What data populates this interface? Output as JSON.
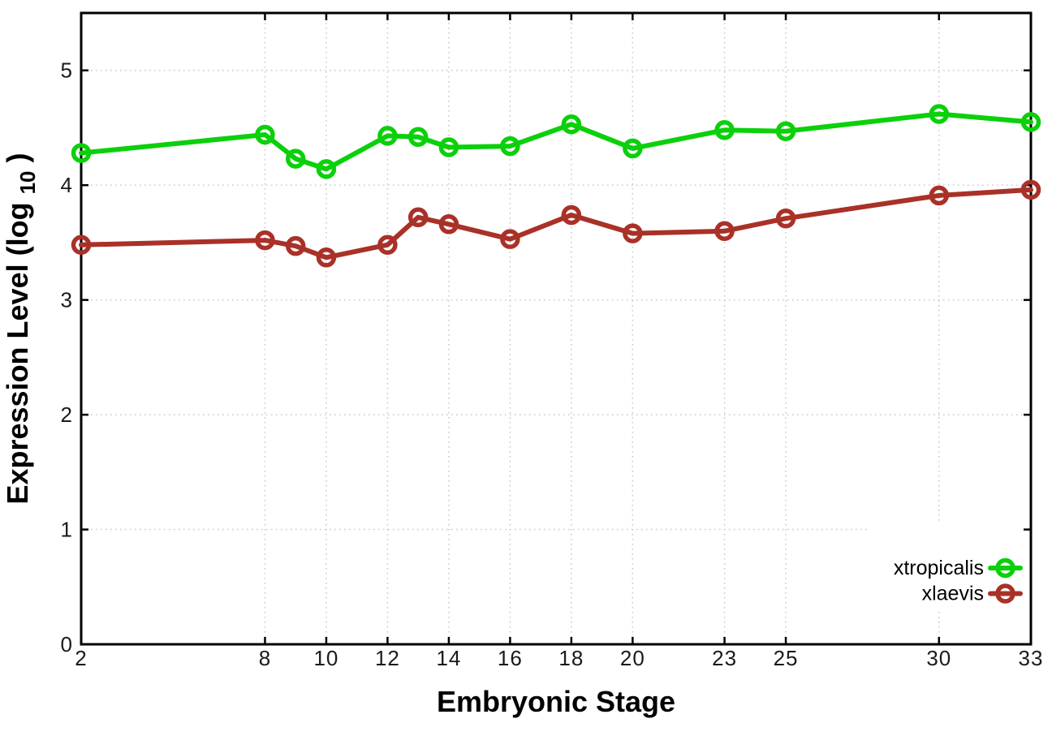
{
  "style": {
    "background": "#ffffff",
    "grid_color": "#c6c6c6",
    "axis_color": "#000000",
    "tick_text_color": "#1a1a1a"
  },
  "chart_data": {
    "type": "line",
    "title": "",
    "xlabel": "Embryonic Stage",
    "ylabel": "Expression Level (log10)",
    "ylabel_main": "Expression Level (log",
    "ylabel_sub": "10",
    "ylabel_close": ")",
    "x": [
      2,
      8,
      9,
      10,
      12,
      13,
      14,
      16,
      18,
      20,
      23,
      25,
      30,
      33
    ],
    "xtick_labels": [
      2,
      8,
      10,
      12,
      14,
      16,
      18,
      20,
      23,
      25,
      30,
      33
    ],
    "ytick_labels": [
      0,
      1,
      2,
      3,
      4,
      5
    ],
    "xlim": [
      2,
      33
    ],
    "ylim": [
      0,
      5.5
    ],
    "grid": true,
    "marker": "open-circle",
    "legend_position": "inside-bottom-right",
    "legend_opaque": true,
    "series": [
      {
        "name": "xtropicalis",
        "color": "#0bd00b",
        "values": [
          4.28,
          4.44,
          4.23,
          4.14,
          4.43,
          4.42,
          4.33,
          4.34,
          4.53,
          4.32,
          4.48,
          4.47,
          4.62,
          4.55
        ]
      },
      {
        "name": "xlaevis",
        "color": "#a93128",
        "values": [
          3.48,
          3.52,
          3.47,
          3.37,
          3.48,
          3.72,
          3.66,
          3.53,
          3.74,
          3.58,
          3.6,
          3.71,
          3.91,
          3.96
        ]
      }
    ]
  }
}
